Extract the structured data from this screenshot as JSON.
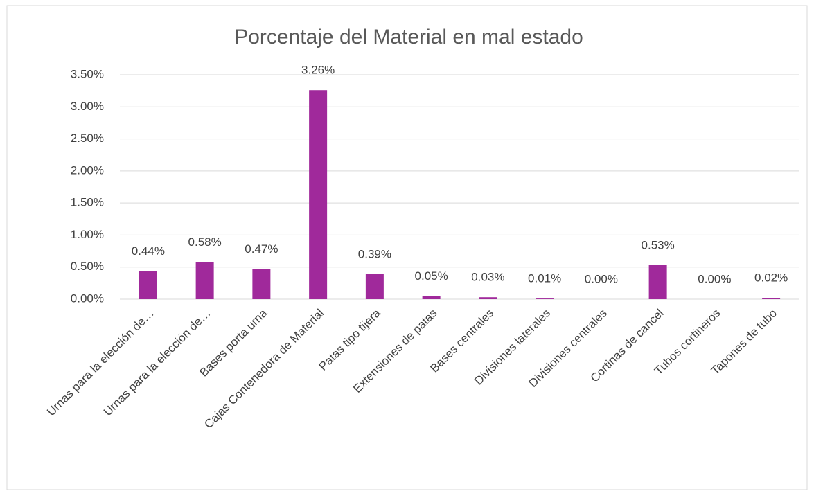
{
  "chart_data": {
    "type": "bar",
    "title": "Porcentaje del Material en mal estado",
    "categories": [
      "Urnas para la elección de…",
      "Urnas para la elección de…",
      "Bases porta urna",
      "Cajas Contenedora de Material",
      "Patas tipo tijera",
      "Extensiones de patas",
      "Bases centrales",
      "Divisiones laterales",
      "Divisiones centrales",
      "Cortinas de cancel",
      "Tubos cortineros",
      "Tapones de tubo"
    ],
    "values": [
      0.44,
      0.58,
      0.47,
      3.26,
      0.39,
      0.05,
      0.03,
      0.01,
      0.0,
      0.53,
      0.0,
      0.02
    ],
    "value_labels": [
      "0.44%",
      "0.58%",
      "0.47%",
      "3.26%",
      "0.39%",
      "0.05%",
      "0.03%",
      "0.01%",
      "0.00%",
      "0.53%",
      "0.00%",
      "0.02%"
    ],
    "color": "#a0299b",
    "ylim": [
      0,
      3.5
    ],
    "yticks": [
      {
        "value": 0,
        "label": "0.00%"
      },
      {
        "value": 0.5,
        "label": "0.50%"
      },
      {
        "value": 1,
        "label": "1.00%"
      },
      {
        "value": 1.5,
        "label": "1.50%"
      },
      {
        "value": 2,
        "label": "2.00%"
      },
      {
        "value": 2.5,
        "label": "2.50%"
      },
      {
        "value": 3,
        "label": "3.00%"
      },
      {
        "value": 3.5,
        "label": "3.50%"
      }
    ],
    "grid": true
  }
}
